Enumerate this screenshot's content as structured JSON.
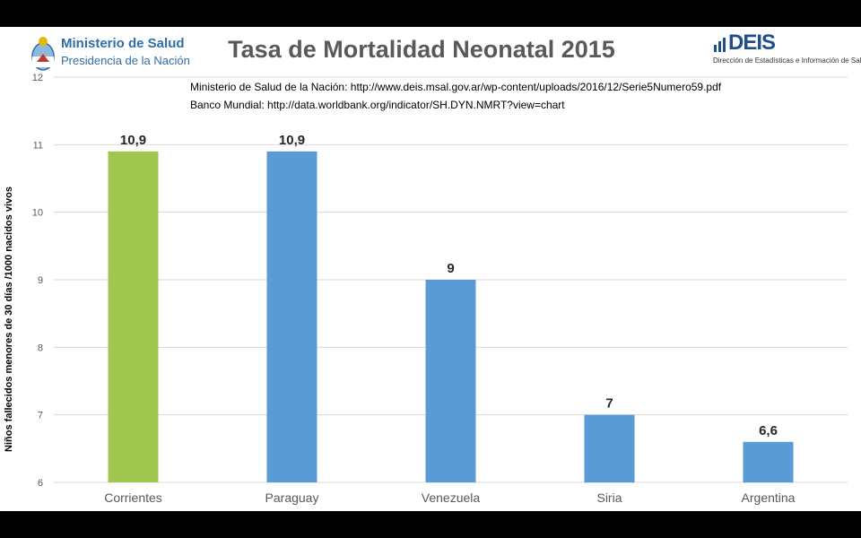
{
  "header": {
    "ministerio_title": "Ministerio de Salud",
    "ministerio_subtitle": "Presidencia de la Nación",
    "deis_word": "DEIS",
    "deis_subtitle": "Dirección de Estadísticas e Información de Salud"
  },
  "sources": [
    "Ministerio de Salud de la Nación: http://www.deis.msal.gov.ar/wp-content/uploads/2016/12/Serie5Numero59.pdf",
    "Banco Mundial: http://data.worldbank.org/indicator/SH.DYN.NMRT?view=chart"
  ],
  "colors": {
    "highlight": "#9fc64e",
    "bar": "#5b9bd5",
    "grid": "#d9d9d9",
    "title": "#595959",
    "brand": "#2f6fa8"
  },
  "chart_data": {
    "type": "bar",
    "title": "Tasa de Mortalidad Neonatal 2015",
    "ylabel": "Niños fallecidos menores de 30 días /1000 nacidos vivos",
    "xlabel": "",
    "categories": [
      "Corrientes",
      "Paraguay",
      "Venezuela",
      "Siria",
      "Argentina"
    ],
    "values": [
      10.9,
      10.9,
      9,
      7,
      6.6
    ],
    "data_labels": [
      "10,9",
      "10,9",
      "9",
      "7",
      "6,6"
    ],
    "highlight_index": 0,
    "ylim": [
      6,
      12
    ],
    "yticks": [
      6,
      7,
      8,
      9,
      10,
      11,
      12
    ],
    "grid": true,
    "legend": "none"
  }
}
